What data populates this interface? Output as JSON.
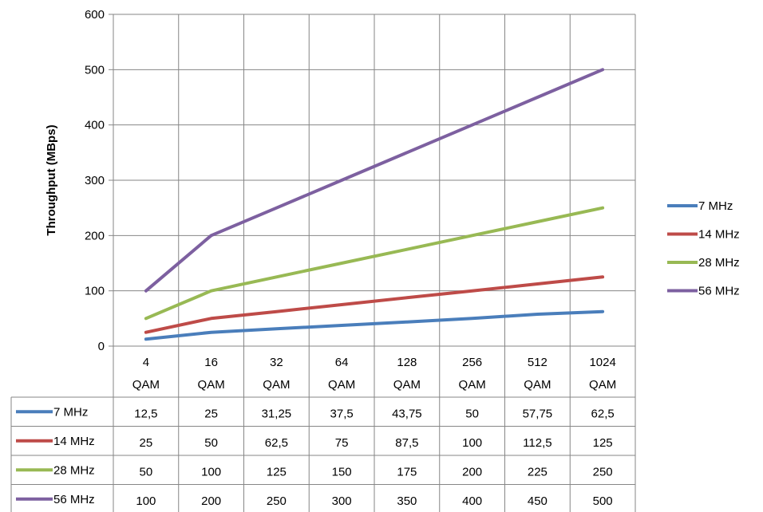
{
  "chart_data": {
    "type": "line",
    "title": "",
    "xlabel": "",
    "ylabel": "Throughput (MBps)",
    "ylim": [
      0,
      600
    ],
    "yticks": [
      0,
      100,
      200,
      300,
      400,
      500,
      600
    ],
    "grid": true,
    "legend_position": "right",
    "data_table": true,
    "categories": [
      [
        "4",
        "QAM"
      ],
      [
        "16",
        "QAM"
      ],
      [
        "32",
        "QAM"
      ],
      [
        "64",
        "QAM"
      ],
      [
        "128",
        "QAM"
      ],
      [
        "256",
        "QAM"
      ],
      [
        "512",
        "QAM"
      ],
      [
        "1024",
        "QAM"
      ]
    ],
    "series": [
      {
        "name": "7 MHz",
        "color": "#4A7EBB",
        "values": [
          12.5,
          25,
          31.25,
          37.5,
          43.75,
          50,
          57.75,
          62.5
        ],
        "labels": [
          "12,5",
          "25",
          "31,25",
          "37,5",
          "43,75",
          "50",
          "57,75",
          "62,5"
        ]
      },
      {
        "name": "14 MHz",
        "color": "#BE4B48",
        "values": [
          25,
          50,
          62.5,
          75,
          87.5,
          100,
          112.5,
          125
        ],
        "labels": [
          "25",
          "50",
          "62,5",
          "75",
          "87,5",
          "100",
          "112,5",
          "125"
        ]
      },
      {
        "name": "28 MHz",
        "color": "#98B954",
        "values": [
          50,
          100,
          125,
          150,
          175,
          200,
          225,
          250
        ],
        "labels": [
          "50",
          "100",
          "125",
          "150",
          "175",
          "200",
          "225",
          "250"
        ]
      },
      {
        "name": "56 MHz",
        "color": "#7D60A0",
        "values": [
          100,
          200,
          250,
          300,
          350,
          400,
          450,
          500
        ],
        "labels": [
          "100",
          "200",
          "250",
          "300",
          "350",
          "400",
          "450",
          "500"
        ]
      }
    ]
  }
}
